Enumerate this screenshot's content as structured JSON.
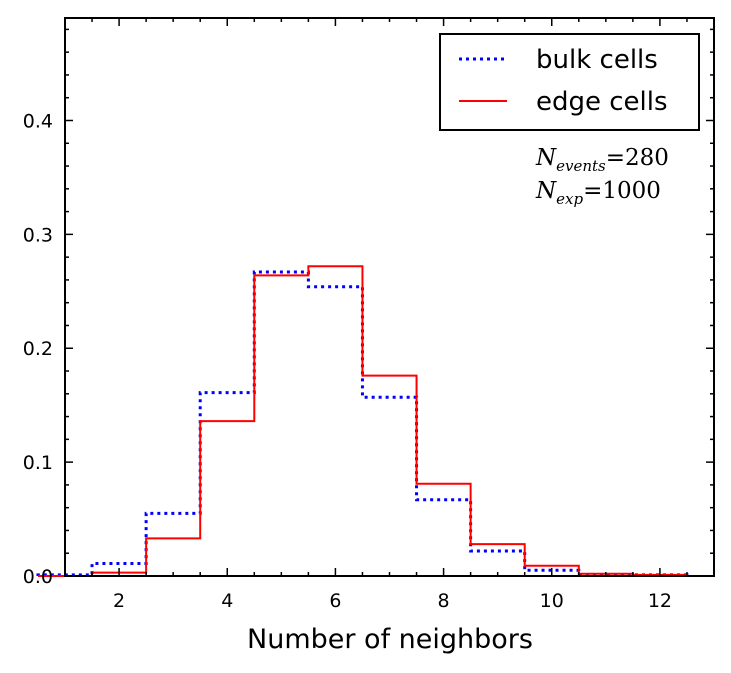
{
  "chart_data": {
    "type": "step-histogram",
    "title": "",
    "xlabel": "Number of neighbors",
    "ylabel": "",
    "xlim": [
      1,
      13
    ],
    "ylim": [
      0,
      0.49
    ],
    "xticks": [
      2,
      4,
      6,
      8,
      10,
      12
    ],
    "xtick_labels": [
      "2",
      "4",
      "6",
      "8",
      "10",
      "12"
    ],
    "yticks": [
      0.0,
      0.1,
      0.2,
      0.3,
      0.4
    ],
    "ytick_labels": [
      "0.0",
      "0.1",
      "0.2",
      "0.3",
      "0.4"
    ],
    "bin_edges": [
      0.5,
      1.5,
      2.5,
      3.5,
      4.5,
      5.5,
      6.5,
      7.5,
      8.5,
      9.5,
      10.5,
      11.5,
      12.5
    ],
    "series": [
      {
        "name": "bulk cells",
        "color": "#0000ff",
        "linestyle": "dotted",
        "values": [
          0.001,
          0.011,
          0.055,
          0.161,
          0.267,
          0.254,
          0.157,
          0.067,
          0.022,
          0.005,
          0.001,
          0.001
        ]
      },
      {
        "name": "edge cells",
        "color": "#ff0000",
        "linestyle": "solid",
        "values": [
          0.0,
          0.003,
          0.033,
          0.136,
          0.264,
          0.272,
          0.176,
          0.081,
          0.028,
          0.009,
          0.002,
          0.001
        ]
      }
    ],
    "legend_position": "top-right",
    "annotations": [
      {
        "symbol": "N",
        "subscript": "events",
        "equals": "=",
        "value": "280"
      },
      {
        "symbol": "N",
        "subscript": "exp",
        "equals": "=",
        "value": "1000"
      }
    ]
  }
}
